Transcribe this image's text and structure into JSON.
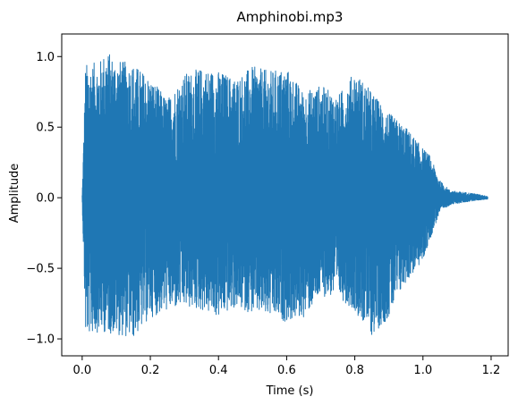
{
  "chart_data": {
    "type": "line",
    "title": "Amphinobi.mp3",
    "xlabel": "Time (s)",
    "ylabel": "Amplitude",
    "xlim": [
      -0.06,
      1.25
    ],
    "ylim": [
      -1.12,
      1.16
    ],
    "xticks": [
      0.0,
      0.2,
      0.4,
      0.6,
      0.8,
      1.0,
      1.2
    ],
    "xtick_labels": [
      "0.0",
      "0.2",
      "0.4",
      "0.6",
      "0.8",
      "1.0",
      "1.2"
    ],
    "yticks": [
      -1.0,
      -0.5,
      0.0,
      0.5,
      1.0
    ],
    "ytick_labels": [
      "−1.0",
      "−0.5",
      "0.0",
      "0.5",
      "1.0"
    ],
    "grid": false,
    "series": [
      {
        "color": "#1f77b4",
        "x_start": 0.0,
        "x_end": 1.19,
        "envelope_upper": [
          [
            0.0,
            0.02
          ],
          [
            0.01,
            0.95
          ],
          [
            0.05,
            0.96
          ],
          [
            0.07,
            1.05
          ],
          [
            0.1,
            0.98
          ],
          [
            0.15,
            0.95
          ],
          [
            0.2,
            0.85
          ],
          [
            0.25,
            0.7
          ],
          [
            0.3,
            0.88
          ],
          [
            0.35,
            0.92
          ],
          [
            0.4,
            0.9
          ],
          [
            0.45,
            0.85
          ],
          [
            0.5,
            0.93
          ],
          [
            0.55,
            0.9
          ],
          [
            0.6,
            0.92
          ],
          [
            0.65,
            0.75
          ],
          [
            0.7,
            0.8
          ],
          [
            0.75,
            0.72
          ],
          [
            0.8,
            0.9
          ],
          [
            0.85,
            0.75
          ],
          [
            0.9,
            0.6
          ],
          [
            0.95,
            0.5
          ],
          [
            1.0,
            0.35
          ],
          [
            1.02,
            0.3
          ],
          [
            1.05,
            0.12
          ],
          [
            1.08,
            0.05
          ],
          [
            1.15,
            0.03
          ],
          [
            1.19,
            0.01
          ]
        ],
        "envelope_lower": [
          [
            0.0,
            -0.02
          ],
          [
            0.01,
            -0.98
          ],
          [
            0.05,
            -0.95
          ],
          [
            0.1,
            -0.97
          ],
          [
            0.15,
            -1.0
          ],
          [
            0.2,
            -0.85
          ],
          [
            0.25,
            -0.8
          ],
          [
            0.3,
            -0.78
          ],
          [
            0.35,
            -0.8
          ],
          [
            0.4,
            -0.85
          ],
          [
            0.45,
            -0.78
          ],
          [
            0.5,
            -0.82
          ],
          [
            0.55,
            -0.85
          ],
          [
            0.6,
            -0.88
          ],
          [
            0.65,
            -0.85
          ],
          [
            0.7,
            -0.7
          ],
          [
            0.75,
            -0.7
          ],
          [
            0.8,
            -0.8
          ],
          [
            0.85,
            -0.98
          ],
          [
            0.9,
            -0.85
          ],
          [
            0.95,
            -0.6
          ],
          [
            1.0,
            -0.45
          ],
          [
            1.02,
            -0.3
          ],
          [
            1.05,
            -0.1
          ],
          [
            1.08,
            -0.05
          ],
          [
            1.15,
            -0.02
          ],
          [
            1.19,
            -0.01
          ]
        ]
      }
    ]
  }
}
